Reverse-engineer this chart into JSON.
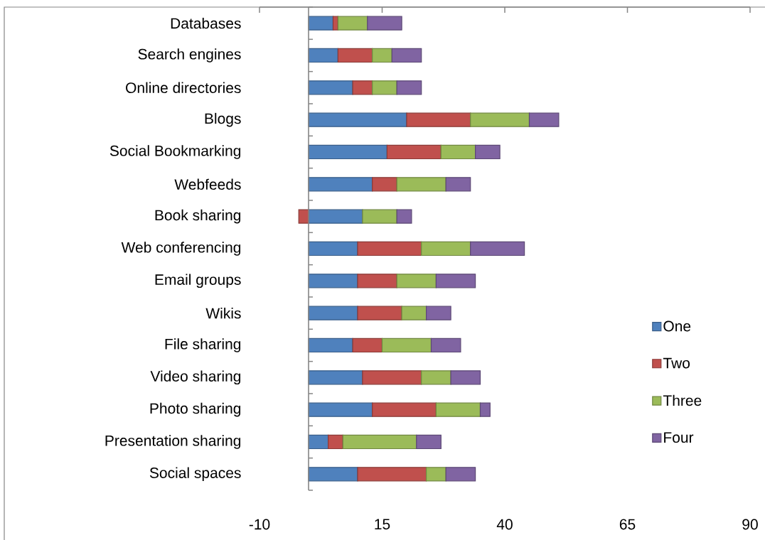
{
  "chart_data": {
    "type": "bar",
    "orientation": "horizontal",
    "stacked": true,
    "categories": [
      "Databases",
      "Search engines",
      "Online directories",
      "Blogs",
      "Social Bookmarking",
      "Webfeeds",
      "Book sharing",
      "Web conferencing",
      "Email groups",
      "Wikis",
      "File sharing",
      "Video sharing",
      "Photo sharing",
      "Presentation sharing",
      "Social spaces"
    ],
    "series": [
      {
        "name": "One",
        "color": "#4f81bd",
        "values": [
          5,
          6,
          9,
          20,
          16,
          13,
          11,
          10,
          10,
          10,
          9,
          11,
          13,
          4,
          10
        ]
      },
      {
        "name": "Two",
        "color": "#c0504d",
        "values": [
          1,
          7,
          4,
          13,
          11,
          5,
          -2,
          13,
          8,
          9,
          6,
          12,
          13,
          3,
          14
        ]
      },
      {
        "name": "Three",
        "color": "#9bbb59",
        "values": [
          6,
          4,
          5,
          12,
          7,
          10,
          7,
          10,
          8,
          5,
          10,
          6,
          9,
          15,
          4
        ]
      },
      {
        "name": "Four",
        "color": "#8064a2",
        "values": [
          7,
          6,
          5,
          6,
          5,
          5,
          3,
          11,
          8,
          5,
          6,
          6,
          2,
          5,
          6
        ]
      }
    ],
    "xlim": [
      -10,
      90
    ],
    "xticks": [
      -10,
      15,
      40,
      65,
      90
    ],
    "legend": "right"
  }
}
